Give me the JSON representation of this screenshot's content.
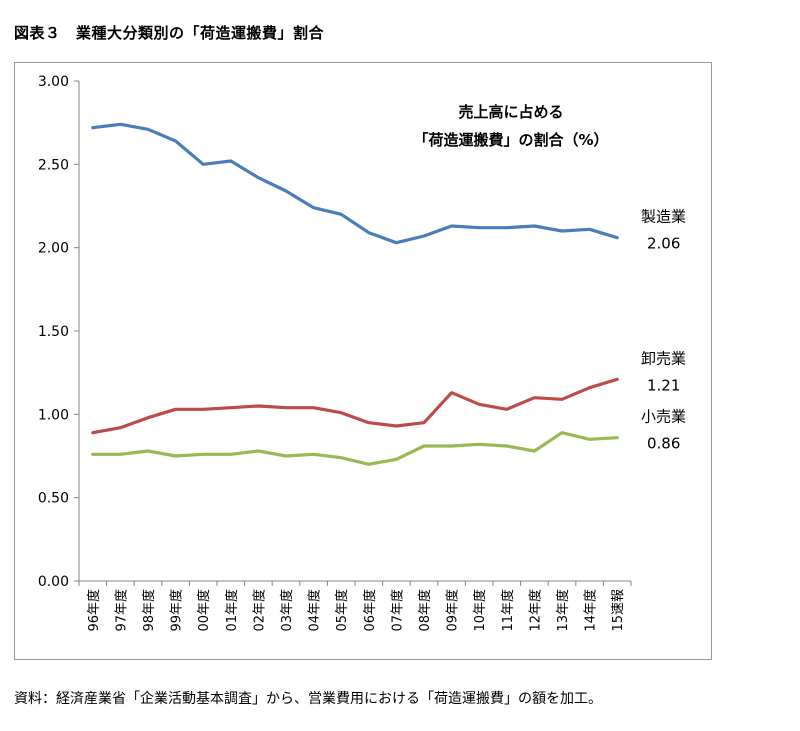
{
  "figure_title": "図表３　業種大分類別の「荷造運搬費」割合",
  "source_note": "資料：経済産業省「企業活動基本調査」から、営業費用における「荷造運搬費」の額を加工。",
  "chart_data": {
    "type": "line",
    "title_lines": [
      "売上高に占める",
      "「荷造運搬費」の割合（%）"
    ],
    "categories": [
      "96年度",
      "97年度",
      "98年度",
      "99年度",
      "00年度",
      "01年度",
      "02年度",
      "03年度",
      "04年度",
      "05年度",
      "06年度",
      "07年度",
      "08年度",
      "09年度",
      "10年度",
      "11年度",
      "12年度",
      "13年度",
      "14年度",
      "15速報"
    ],
    "ylim": [
      0,
      3
    ],
    "yticks": [
      "0.00",
      "0.50",
      "1.00",
      "1.50",
      "2.00",
      "2.50",
      "3.00"
    ],
    "grid": false,
    "series": [
      {
        "name": "製造業",
        "end_label": "2.06",
        "color": "#4a7ebb",
        "values": [
          2.72,
          2.74,
          2.71,
          2.64,
          2.5,
          2.52,
          2.42,
          2.34,
          2.24,
          2.2,
          2.09,
          2.03,
          2.07,
          2.13,
          2.12,
          2.12,
          2.13,
          2.1,
          2.11,
          2.06
        ]
      },
      {
        "name": "卸売業",
        "end_label": "1.21",
        "color": "#be4b48",
        "values": [
          0.89,
          0.92,
          0.98,
          1.03,
          1.03,
          1.04,
          1.05,
          1.04,
          1.04,
          1.01,
          0.95,
          0.93,
          0.95,
          1.13,
          1.06,
          1.03,
          1.1,
          1.09,
          1.16,
          1.21
        ]
      },
      {
        "name": "小売業",
        "end_label": "0.86",
        "color": "#98b954",
        "values": [
          0.76,
          0.76,
          0.78,
          0.75,
          0.76,
          0.76,
          0.78,
          0.75,
          0.76,
          0.74,
          0.7,
          0.73,
          0.81,
          0.81,
          0.82,
          0.81,
          0.78,
          0.89,
          0.85,
          0.86
        ]
      }
    ]
  }
}
